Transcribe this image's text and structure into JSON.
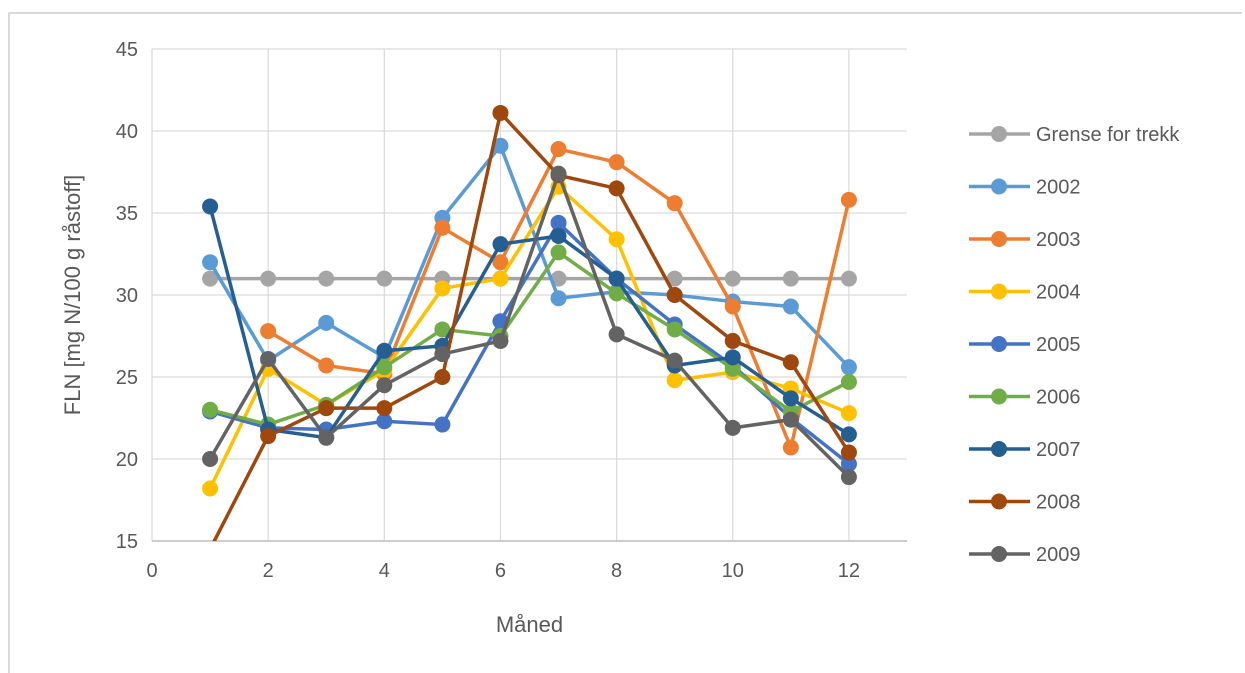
{
  "chart_data": {
    "type": "line",
    "xlabel": "Måned",
    "ylabel": "FLN [mg N/100 g råstoff]",
    "xlim": [
      0,
      13
    ],
    "ylim": [
      15,
      45
    ],
    "xticks": [
      0,
      2,
      4,
      6,
      8,
      10,
      12
    ],
    "yticks": [
      15,
      20,
      25,
      30,
      35,
      40,
      45
    ],
    "grid": "both",
    "legend": "right",
    "x": [
      1,
      2,
      3,
      4,
      5,
      6,
      7,
      8,
      9,
      10,
      11,
      12
    ],
    "series": [
      {
        "name": "Grense for trekk",
        "color": "#a5a5a5",
        "values": [
          31,
          31,
          31,
          31,
          31,
          31,
          31,
          31,
          31,
          31,
          31,
          31
        ]
      },
      {
        "name": "2002",
        "color": "#5b9bd5",
        "values": [
          32,
          26,
          28.3,
          26.2,
          34.7,
          39.1,
          29.8,
          30.2,
          30,
          29.6,
          29.3,
          25.6
        ]
      },
      {
        "name": "2003",
        "color": "#ed7d31",
        "values": [
          null,
          27.8,
          25.7,
          25.2,
          34.1,
          32,
          38.9,
          38.1,
          35.6,
          29.3,
          20.7,
          35.8
        ]
      },
      {
        "name": "2004",
        "color": "#ffc000",
        "values": [
          18.2,
          25.5,
          23.3,
          25.4,
          30.4,
          31,
          36.6,
          33.4,
          24.8,
          25.3,
          24.3,
          22.8
        ]
      },
      {
        "name": "2005",
        "color": "#4472c4",
        "values": [
          22.9,
          21.9,
          21.8,
          22.3,
          22.1,
          28.4,
          34.4,
          31,
          28.2,
          25.7,
          22.5,
          19.7
        ]
      },
      {
        "name": "2006",
        "color": "#70ad47",
        "values": [
          23,
          22.1,
          23.3,
          25.6,
          27.9,
          27.5,
          32.6,
          30.1,
          27.9,
          25.5,
          22.9,
          24.7
        ]
      },
      {
        "name": "2007",
        "color": "#255e91",
        "values": [
          35.4,
          21.8,
          21.3,
          26.6,
          26.9,
          33.1,
          33.6,
          31,
          25.7,
          26.2,
          23.7,
          21.5
        ]
      },
      {
        "name": "2008",
        "color": "#9e480e",
        "values": [
          14.5,
          21.4,
          23.1,
          23.1,
          25,
          41.1,
          37.3,
          36.5,
          30,
          27.2,
          25.9,
          20.4
        ]
      },
      {
        "name": "2009",
        "color": "#636363",
        "values": [
          20,
          26.1,
          21.3,
          24.5,
          26.4,
          27.2,
          37.4,
          27.6,
          26,
          21.9,
          22.4,
          18.9
        ]
      }
    ]
  }
}
